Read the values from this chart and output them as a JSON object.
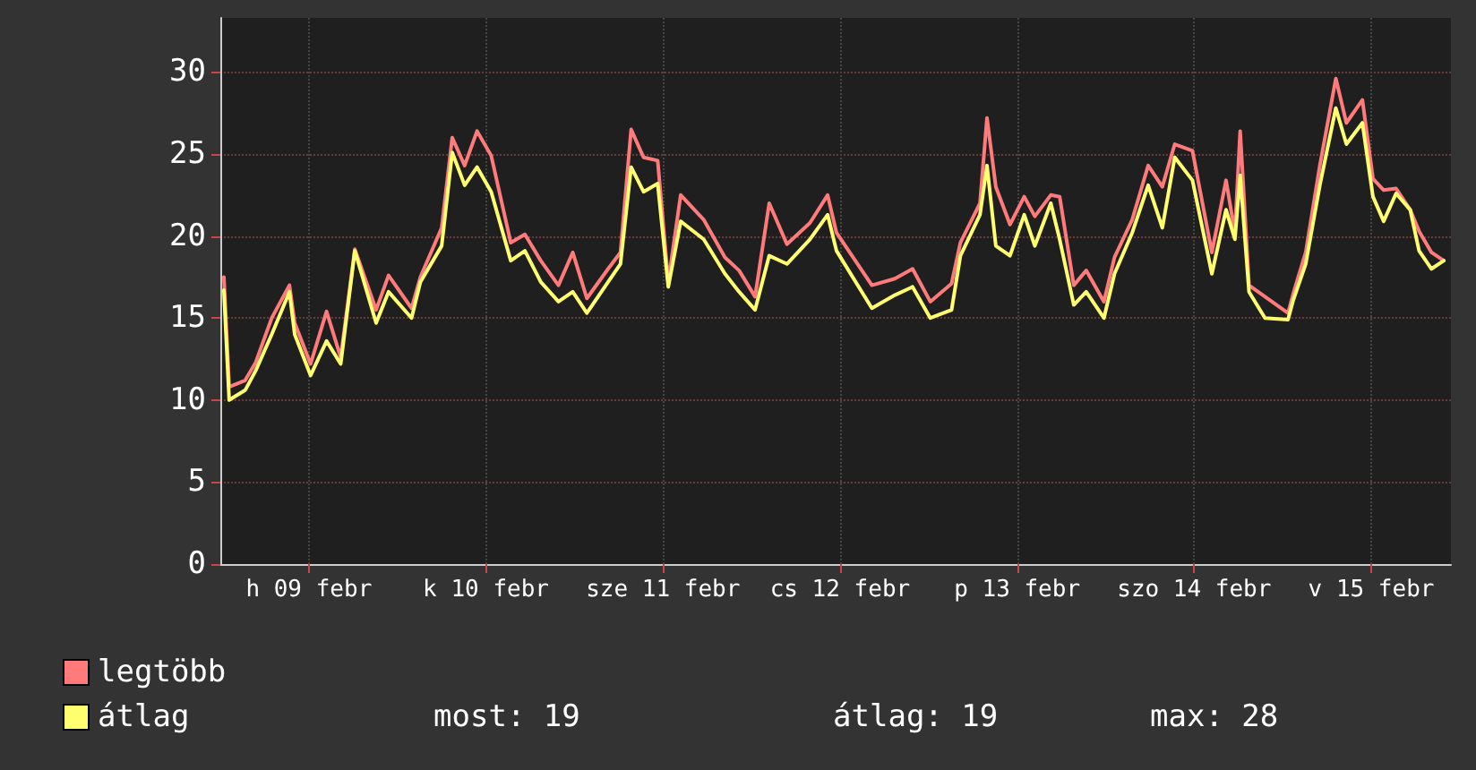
{
  "chart_data": {
    "type": "line",
    "xlim": [
      "--02-09T00:00",
      "--02-15T22:48"
    ],
    "xticks": [
      {
        "value": "--02-09T12:00",
        "label": "h 09 febr"
      },
      {
        "value": "--02-10T12:00",
        "label": "k 10 febr"
      },
      {
        "value": "--02-11T12:00",
        "label": "sze 11 febr"
      },
      {
        "value": "--02-12T12:00",
        "label": "cs 12 febr"
      },
      {
        "value": "--02-13T12:00",
        "label": "p 13 febr"
      },
      {
        "value": "--02-14T12:00",
        "label": "szo 14 febr"
      },
      {
        "value": "--02-15T12:00",
        "label": "v 15 febr"
      }
    ],
    "ylim": [
      0,
      33.3
    ],
    "yticks": [
      0,
      5,
      10,
      15,
      20,
      25,
      30
    ],
    "grid": true,
    "legend": "bottom left",
    "marker": "none",
    "line_style": "solid",
    "x": [
      "--02-09T00:29",
      "--02-09T01:12",
      "--02-09T03:22",
      "--02-09T04:48",
      "--02-09T06:58",
      "--02-09T09:22",
      "--02-09T10:05",
      "--02-09T12:14",
      "--02-09T14:24",
      "--02-09T16:19",
      "--02-09T18:14",
      "--02-09T21:07",
      "--02-09T22:48",
      "--02-10T01:55",
      "--02-10T03:07",
      "--02-10T06:00",
      "--02-10T07:26",
      "--02-10T09:07",
      "--02-10T10:48",
      "--02-10T12:43",
      "--02-10T15:22",
      "--02-10T17:17",
      "--02-10T19:26",
      "--02-10T21:50",
      "--02-10T23:46",
      "--02-11T01:41",
      "--02-11T04:34",
      "--02-11T06:14",
      "--02-11T07:41",
      "--02-11T09:22",
      "--02-11T11:17",
      "--02-11T12:43",
      "--02-11T14:24",
      "--02-11T17:31",
      "--02-11T20:24",
      "--02-11T22:19",
      "--02-12T00:29",
      "--02-12T02:24",
      "--02-12T04:48",
      "--02-12T07:55",
      "--02-12T10:19",
      "--02-12T11:31",
      "--02-12T16:19",
      "--02-12T19:26",
      "--02-12T21:50",
      "--02-13T00:14",
      "--02-13T03:07",
      "--02-13T04:19",
      "--02-13T06:58",
      "--02-13T07:55",
      "--02-13T09:07",
      "--02-13T11:02",
      "--02-13T12:58",
      "--02-13T14:24",
      "--02-13T16:34",
      "--02-13T17:46",
      "--02-13T19:41",
      "--02-13T21:22",
      "--02-13T23:46",
      "--02-14T01:12",
      "--02-14T03:36",
      "--02-14T05:46",
      "--02-14T07:41",
      "--02-14T09:22",
      "--02-14T11:46",
      "--02-14T14:24",
      "--02-14T16:19",
      "--02-14T17:31",
      "--02-14T18:14",
      "--02-14T19:26",
      "--02-14T21:36",
      "--02-15T00:43",
      "--02-15T01:26",
      "--02-15T03:07",
      "--02-15T05:02",
      "--02-15T07:12",
      "--02-15T08:38",
      "--02-15T10:48",
      "--02-15T12:14",
      "--02-15T13:41",
      "--02-15T15:22",
      "--02-15T17:17",
      "--02-15T18:29",
      "--02-15T20:10",
      "--02-15T21:50"
    ],
    "series": [
      {
        "name": "legtöbb",
        "color": "#ff7b7b",
        "values": [
          17.5,
          10.8,
          11.2,
          12.3,
          15.0,
          17.0,
          14.7,
          12.2,
          15.4,
          12.6,
          19.2,
          15.5,
          17.6,
          15.6,
          17.5,
          20.5,
          26.0,
          24.3,
          26.4,
          24.9,
          19.6,
          20.1,
          18.5,
          17.0,
          19.0,
          16.2,
          18.0,
          19.0,
          26.5,
          24.8,
          24.6,
          17.2,
          22.5,
          21.0,
          18.7,
          17.9,
          16.3,
          22.0,
          19.5,
          20.8,
          22.5,
          20.2,
          17.0,
          17.4,
          18.0,
          16.0,
          17.1,
          19.6,
          22.0,
          27.2,
          23.0,
          20.7,
          22.4,
          21.2,
          22.5,
          22.4,
          17.0,
          17.9,
          16.0,
          18.7,
          21.0,
          24.3,
          23.0,
          25.6,
          25.2,
          19.0,
          23.4,
          20.2,
          26.4,
          17.0,
          16.3,
          15.3,
          16.5,
          19.0,
          24.3,
          29.6,
          26.9,
          28.3,
          23.5,
          22.8,
          22.9,
          21.6,
          20.3,
          19.0,
          18.5
        ]
      },
      {
        "name": "átlag",
        "color": "#ffff70",
        "values": [
          16.7,
          10.0,
          10.6,
          11.8,
          14.0,
          16.6,
          14.0,
          11.5,
          13.6,
          12.2,
          19.1,
          14.7,
          16.6,
          15.0,
          17.2,
          19.4,
          25.1,
          23.1,
          24.2,
          22.7,
          18.5,
          19.1,
          17.2,
          16.0,
          16.6,
          15.3,
          17.2,
          18.3,
          24.2,
          22.7,
          23.2,
          16.9,
          20.9,
          19.8,
          17.7,
          16.6,
          15.5,
          18.8,
          18.3,
          19.8,
          21.3,
          19.1,
          15.6,
          16.4,
          16.9,
          15.0,
          15.5,
          18.8,
          21.3,
          24.3,
          19.4,
          18.8,
          21.3,
          19.4,
          22.0,
          19.8,
          15.8,
          16.6,
          15.0,
          17.7,
          20.2,
          23.1,
          20.5,
          24.8,
          23.4,
          17.7,
          21.6,
          19.8,
          23.7,
          16.6,
          15.0,
          14.9,
          16.1,
          18.3,
          23.1,
          27.8,
          25.6,
          26.9,
          22.4,
          20.9,
          22.6,
          21.6,
          19.1,
          18.0,
          18.5
        ]
      }
    ],
    "annotations": [
      "most: 19",
      "átlag: 19",
      "max: 28"
    ]
  }
}
